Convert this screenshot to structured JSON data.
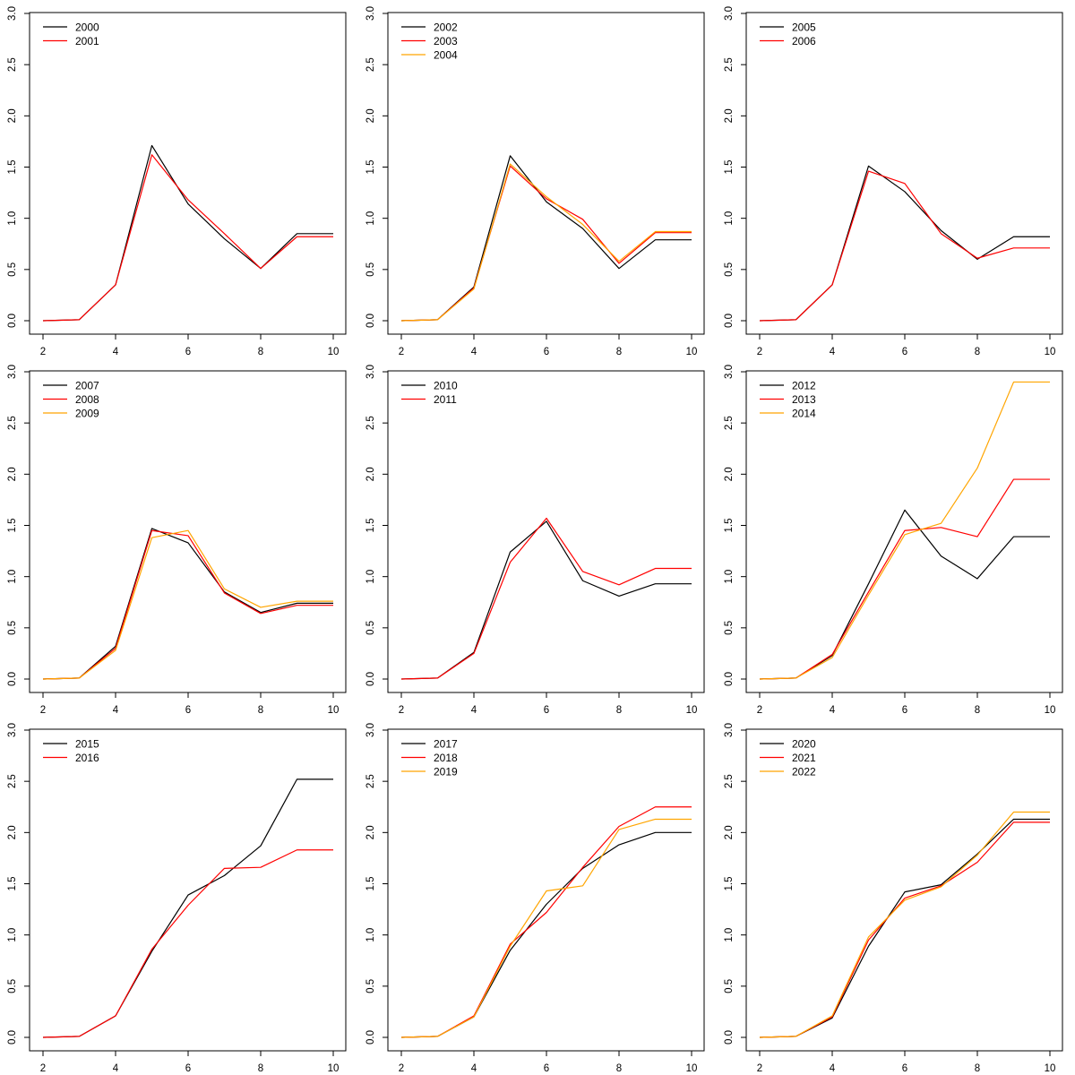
{
  "chart_data": [
    {
      "type": "line",
      "x": [
        2,
        3,
        4,
        5,
        6,
        7,
        8,
        9,
        10
      ],
      "xlim": [
        2,
        10
      ],
      "ylim": [
        0,
        3
      ],
      "xticks": [
        "2",
        "4",
        "6",
        "8",
        "10"
      ],
      "yticks": [
        "0.0",
        "0.5",
        "1.0",
        "1.5",
        "2.0",
        "2.5",
        "3.0"
      ],
      "legend_position": "top-left",
      "series": [
        {
          "name": "2000",
          "color": "#000000",
          "values": [
            0.0,
            0.01,
            0.35,
            1.71,
            1.14,
            0.8,
            0.51,
            0.85,
            0.85
          ]
        },
        {
          "name": "2001",
          "color": "#ff0000",
          "values": [
            0.0,
            0.01,
            0.35,
            1.62,
            1.18,
            0.85,
            0.51,
            0.82,
            0.82
          ]
        }
      ]
    },
    {
      "type": "line",
      "x": [
        2,
        3,
        4,
        5,
        6,
        7,
        8,
        9,
        10
      ],
      "xlim": [
        2,
        10
      ],
      "ylim": [
        0,
        3
      ],
      "xticks": [
        "2",
        "4",
        "6",
        "8",
        "10"
      ],
      "yticks": [
        "0.0",
        "0.5",
        "1.0",
        "1.5",
        "2.0",
        "2.5",
        "3.0"
      ],
      "legend_position": "top-left",
      "series": [
        {
          "name": "2002",
          "color": "#000000",
          "values": [
            0.0,
            0.01,
            0.33,
            1.61,
            1.16,
            0.9,
            0.51,
            0.79,
            0.79
          ]
        },
        {
          "name": "2003",
          "color": "#ff0000",
          "values": [
            0.0,
            0.01,
            0.32,
            1.51,
            1.19,
            0.99,
            0.56,
            0.86,
            0.86
          ]
        },
        {
          "name": "2004",
          "color": "#ffa500",
          "values": [
            0.0,
            0.01,
            0.31,
            1.53,
            1.21,
            0.94,
            0.58,
            0.87,
            0.87
          ]
        }
      ]
    },
    {
      "type": "line",
      "x": [
        2,
        3,
        4,
        5,
        6,
        7,
        8,
        9,
        10
      ],
      "xlim": [
        2,
        10
      ],
      "ylim": [
        0,
        3
      ],
      "xticks": [
        "2",
        "4",
        "6",
        "8",
        "10"
      ],
      "yticks": [
        "0.0",
        "0.5",
        "1.0",
        "1.5",
        "2.0",
        "2.5",
        "3.0"
      ],
      "legend_position": "top-left",
      "series": [
        {
          "name": "2005",
          "color": "#000000",
          "values": [
            0.0,
            0.01,
            0.35,
            1.51,
            1.26,
            0.88,
            0.6,
            0.82,
            0.82
          ]
        },
        {
          "name": "2006",
          "color": "#ff0000",
          "values": [
            0.0,
            0.01,
            0.35,
            1.46,
            1.34,
            0.85,
            0.61,
            0.71,
            0.71
          ]
        }
      ]
    },
    {
      "type": "line",
      "x": [
        2,
        3,
        4,
        5,
        6,
        7,
        8,
        9,
        10
      ],
      "xlim": [
        2,
        10
      ],
      "ylim": [
        0,
        3
      ],
      "xticks": [
        "2",
        "4",
        "6",
        "8",
        "10"
      ],
      "yticks": [
        "0.0",
        "0.5",
        "1.0",
        "1.5",
        "2.0",
        "2.5",
        "3.0"
      ],
      "legend_position": "top-left",
      "series": [
        {
          "name": "2007",
          "color": "#000000",
          "values": [
            0.0,
            0.01,
            0.32,
            1.47,
            1.33,
            0.85,
            0.65,
            0.74,
            0.74
          ]
        },
        {
          "name": "2008",
          "color": "#ff0000",
          "values": [
            0.0,
            0.01,
            0.3,
            1.45,
            1.4,
            0.84,
            0.64,
            0.72,
            0.72
          ]
        },
        {
          "name": "2009",
          "color": "#ffa500",
          "values": [
            0.0,
            0.01,
            0.28,
            1.38,
            1.45,
            0.88,
            0.7,
            0.76,
            0.76
          ]
        }
      ]
    },
    {
      "type": "line",
      "x": [
        2,
        3,
        4,
        5,
        6,
        7,
        8,
        9,
        10
      ],
      "xlim": [
        2,
        10
      ],
      "ylim": [
        0,
        3
      ],
      "xticks": [
        "2",
        "4",
        "6",
        "8",
        "10"
      ],
      "yticks": [
        "0.0",
        "0.5",
        "1.0",
        "1.5",
        "2.0",
        "2.5",
        "3.0"
      ],
      "legend_position": "top-left",
      "series": [
        {
          "name": "2010",
          "color": "#000000",
          "values": [
            0.0,
            0.01,
            0.26,
            1.24,
            1.54,
            0.96,
            0.81,
            0.93,
            0.93
          ]
        },
        {
          "name": "2011",
          "color": "#ff0000",
          "values": [
            0.0,
            0.01,
            0.25,
            1.14,
            1.57,
            1.05,
            0.92,
            1.08,
            1.08
          ]
        }
      ]
    },
    {
      "type": "line",
      "x": [
        2,
        3,
        4,
        5,
        6,
        7,
        8,
        9,
        10
      ],
      "xlim": [
        2,
        10
      ],
      "ylim": [
        0,
        3
      ],
      "xticks": [
        "2",
        "4",
        "6",
        "8",
        "10"
      ],
      "yticks": [
        "0.0",
        "0.5",
        "1.0",
        "1.5",
        "2.0",
        "2.5",
        "3.0"
      ],
      "legend_position": "top-left",
      "series": [
        {
          "name": "2012",
          "color": "#000000",
          "values": [
            0.0,
            0.01,
            0.23,
            0.93,
            1.65,
            1.2,
            0.98,
            1.39,
            1.39
          ]
        },
        {
          "name": "2013",
          "color": "#ff0000",
          "values": [
            0.0,
            0.01,
            0.24,
            0.85,
            1.45,
            1.48,
            1.39,
            1.95,
            1.95
          ]
        },
        {
          "name": "2014",
          "color": "#ffa500",
          "values": [
            0.0,
            0.01,
            0.21,
            0.82,
            1.41,
            1.52,
            2.06,
            2.9,
            2.9
          ]
        }
      ]
    },
    {
      "type": "line",
      "x": [
        2,
        3,
        4,
        5,
        6,
        7,
        8,
        9,
        10
      ],
      "xlim": [
        2,
        10
      ],
      "ylim": [
        0,
        3
      ],
      "xticks": [
        "2",
        "4",
        "6",
        "8",
        "10"
      ],
      "yticks": [
        "0.0",
        "0.5",
        "1.0",
        "1.5",
        "2.0",
        "2.5",
        "3.0"
      ],
      "legend_position": "top-left",
      "series": [
        {
          "name": "2015",
          "color": "#000000",
          "values": [
            0.0,
            0.01,
            0.21,
            0.84,
            1.39,
            1.58,
            1.87,
            2.52,
            2.52
          ]
        },
        {
          "name": "2016",
          "color": "#ff0000",
          "values": [
            0.0,
            0.01,
            0.21,
            0.86,
            1.29,
            1.65,
            1.66,
            1.83,
            1.83
          ]
        }
      ]
    },
    {
      "type": "line",
      "x": [
        2,
        3,
        4,
        5,
        6,
        7,
        8,
        9,
        10
      ],
      "xlim": [
        2,
        10
      ],
      "ylim": [
        0,
        3
      ],
      "xticks": [
        "2",
        "4",
        "6",
        "8",
        "10"
      ],
      "yticks": [
        "0.0",
        "0.5",
        "1.0",
        "1.5",
        "2.0",
        "2.5",
        "3.0"
      ],
      "legend_position": "top-left",
      "series": [
        {
          "name": "2017",
          "color": "#000000",
          "values": [
            0.0,
            0.01,
            0.2,
            0.85,
            1.3,
            1.65,
            1.88,
            2.0,
            2.0
          ]
        },
        {
          "name": "2018",
          "color": "#ff0000",
          "values": [
            0.0,
            0.01,
            0.21,
            0.91,
            1.22,
            1.66,
            2.06,
            2.25,
            2.25
          ]
        },
        {
          "name": "2019",
          "color": "#ffa500",
          "values": [
            0.0,
            0.01,
            0.2,
            0.89,
            1.43,
            1.48,
            2.03,
            2.13,
            2.13
          ]
        }
      ]
    },
    {
      "type": "line",
      "x": [
        2,
        3,
        4,
        5,
        6,
        7,
        8,
        9,
        10
      ],
      "xlim": [
        2,
        10
      ],
      "ylim": [
        0,
        3
      ],
      "xticks": [
        "2",
        "4",
        "6",
        "8",
        "10"
      ],
      "yticks": [
        "0.0",
        "0.5",
        "1.0",
        "1.5",
        "2.0",
        "2.5",
        "3.0"
      ],
      "legend_position": "top-left",
      "series": [
        {
          "name": "2020",
          "color": "#000000",
          "values": [
            0.0,
            0.01,
            0.19,
            0.89,
            1.42,
            1.49,
            1.79,
            2.13,
            2.13
          ]
        },
        {
          "name": "2021",
          "color": "#ff0000",
          "values": [
            0.0,
            0.01,
            0.2,
            0.95,
            1.36,
            1.48,
            1.71,
            2.1,
            2.1
          ]
        },
        {
          "name": "2022",
          "color": "#ffa500",
          "values": [
            0.0,
            0.01,
            0.21,
            0.98,
            1.34,
            1.47,
            1.78,
            2.2,
            2.2
          ]
        }
      ]
    }
  ]
}
